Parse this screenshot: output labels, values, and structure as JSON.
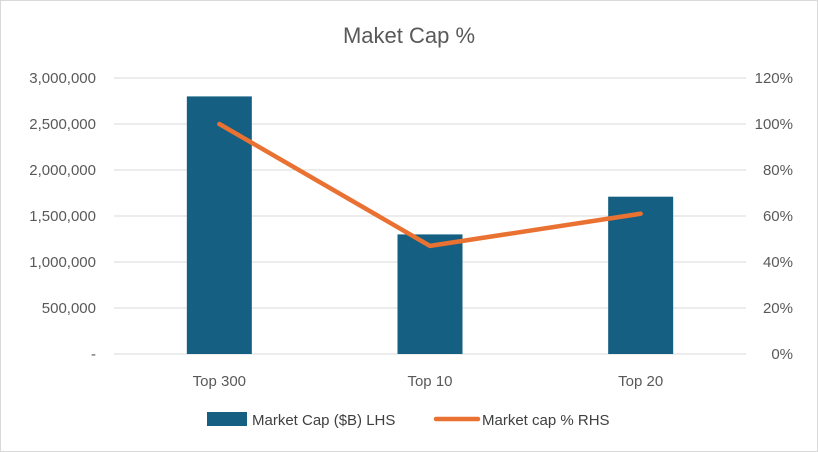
{
  "chart_data": {
    "type": "bar",
    "title": "Maket Cap %",
    "categories": [
      "Top 300",
      "Top 10",
      "Top 20"
    ],
    "series": [
      {
        "name": "Market Cap ($B) LHS",
        "type": "bar",
        "axis": "left",
        "color": "#156082",
        "values": [
          2800000,
          1300000,
          1710000
        ]
      },
      {
        "name": "Market cap % RHS",
        "type": "line",
        "axis": "right",
        "color": "#E97132",
        "values": [
          100,
          47,
          61
        ]
      }
    ],
    "y_left": {
      "min": 0,
      "max": 3000000,
      "step": 500000,
      "tick_labels": [
        "-",
        "500,000",
        "1,000,000",
        "1,500,000",
        "2,000,000",
        "2,500,000",
        "3,000,000"
      ]
    },
    "y_right": {
      "min": 0,
      "max": 120,
      "step": 20,
      "tick_labels": [
        "0%",
        "20%",
        "40%",
        "60%",
        "80%",
        "100%",
        "120%"
      ]
    },
    "grid": true,
    "legend_position": "bottom"
  }
}
